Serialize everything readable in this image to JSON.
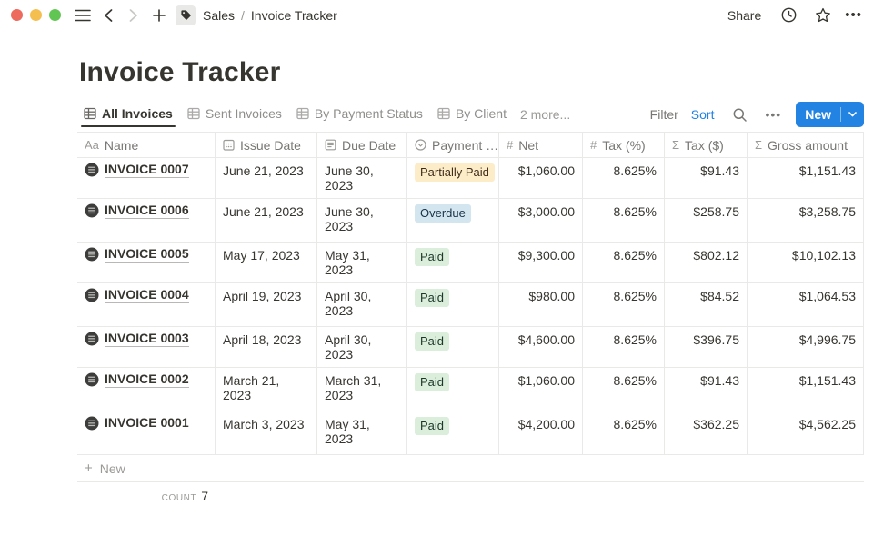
{
  "topbar": {
    "icons_left": [
      "sidebar-menu",
      "back",
      "forward",
      "new-page",
      "tag"
    ],
    "breadcrumb": {
      "workspace": "Sales",
      "separator": "/",
      "page": "Invoice Tracker"
    },
    "share_label": "Share",
    "icons_right": [
      "clock",
      "star",
      "more"
    ],
    "more_glyph": "•••"
  },
  "page": {
    "title": "Invoice Tracker"
  },
  "views": {
    "tabs": [
      {
        "label": "All Invoices",
        "active": true
      },
      {
        "label": "Sent Invoices",
        "active": false
      },
      {
        "label": "By Payment Status",
        "active": false
      },
      {
        "label": "By Client",
        "active": false
      }
    ],
    "more_label": "2 more..."
  },
  "toolbar": {
    "filter_label": "Filter",
    "sort_label": "Sort",
    "more_glyph": "•••",
    "new_label": "New"
  },
  "table": {
    "columns": [
      {
        "key": "name",
        "label": "Name",
        "icon": "text",
        "align": "left"
      },
      {
        "key": "issue",
        "label": "Issue Date",
        "icon": "calendar",
        "align": "left"
      },
      {
        "key": "due",
        "label": "Due Date",
        "icon": "page",
        "align": "left"
      },
      {
        "key": "status",
        "label": "Payment …",
        "icon": "select",
        "align": "left"
      },
      {
        "key": "net",
        "label": "Net",
        "icon": "number",
        "align": "right"
      },
      {
        "key": "taxpct",
        "label": "Tax (%)",
        "icon": "number",
        "align": "right"
      },
      {
        "key": "taxusd",
        "label": "Tax ($)",
        "icon": "formula",
        "align": "right"
      },
      {
        "key": "gross",
        "label": "Gross amount",
        "icon": "formula",
        "align": "right"
      }
    ],
    "rows": [
      {
        "name": "INVOICE 0007",
        "issue": "June 21, 2023",
        "due": "June 30, 2023",
        "status": "Partially Paid",
        "status_color": "yellow",
        "net": "$1,060.00",
        "taxpct": "8.625%",
        "taxusd": "$91.43",
        "gross": "$1,151.43",
        "tall": false
      },
      {
        "name": "INVOICE 0006",
        "issue": "June 21, 2023",
        "due": "June 30, 2023",
        "status": "Overdue",
        "status_color": "blue",
        "net": "$3,000.00",
        "taxpct": "8.625%",
        "taxusd": "$258.75",
        "gross": "$3,258.75",
        "tall": true
      },
      {
        "name": "INVOICE 0005",
        "issue": "May 17, 2023",
        "due": "May 31, 2023",
        "status": "Paid",
        "status_color": "green",
        "net": "$9,300.00",
        "taxpct": "8.625%",
        "taxusd": "$802.12",
        "gross": "$10,102.13",
        "tall": false
      },
      {
        "name": "INVOICE 0004",
        "issue": "April 19, 2023",
        "due": "April 30, 2023",
        "status": "Paid",
        "status_color": "green",
        "net": "$980.00",
        "taxpct": "8.625%",
        "taxusd": "$84.52",
        "gross": "$1,064.53",
        "tall": true
      },
      {
        "name": "INVOICE 0003",
        "issue": "April 18, 2023",
        "due": "April 30, 2023",
        "status": "Paid",
        "status_color": "green",
        "net": "$4,600.00",
        "taxpct": "8.625%",
        "taxusd": "$396.75",
        "gross": "$4,996.75",
        "tall": false
      },
      {
        "name": "INVOICE 0002",
        "issue": "March 21, 2023",
        "due": "March 31, 2023",
        "status": "Paid",
        "status_color": "green",
        "net": "$1,060.00",
        "taxpct": "8.625%",
        "taxusd": "$91.43",
        "gross": "$1,151.43",
        "tall": true
      },
      {
        "name": "INVOICE 0001",
        "issue": "March 3, 2023",
        "due": "May 31, 2023",
        "status": "Paid",
        "status_color": "green",
        "net": "$4,200.00",
        "taxpct": "8.625%",
        "taxusd": "$362.25",
        "gross": "$4,562.25",
        "tall": true
      }
    ],
    "new_row_label": "New",
    "footer": {
      "count_label": "count",
      "count_value": "7"
    }
  },
  "colors": {
    "accent_blue": "#2383e2",
    "text_dark": "#37352f",
    "text_gray": "#787774",
    "border": "#e9e9e7",
    "badges": {
      "yellow": {
        "bg": "#fdecc8",
        "fg": "#402c1b"
      },
      "blue": {
        "bg": "#d3e5ef",
        "fg": "#183347"
      },
      "green": {
        "bg": "#dbeddb",
        "fg": "#1c3829"
      }
    }
  }
}
